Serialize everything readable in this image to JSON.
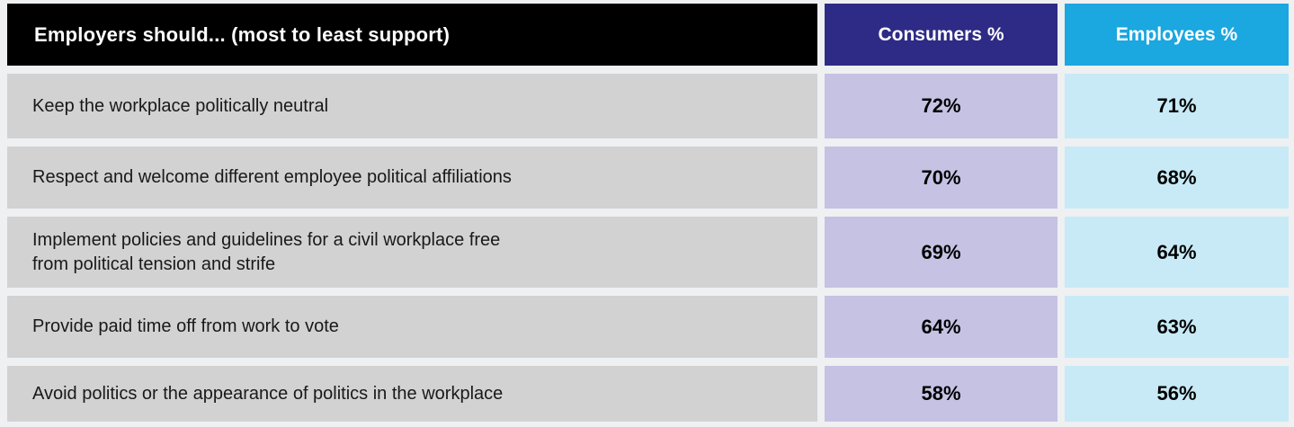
{
  "table": {
    "header": {
      "label": "Employers should... (most to least support)",
      "consumers": "Consumers %",
      "employees": "Employees %"
    },
    "rows": [
      {
        "label": "Keep the workplace politically neutral",
        "consumers": "72%",
        "employees": "71%"
      },
      {
        "label": "Respect and welcome different employee political affiliations",
        "consumers": "70%",
        "employees": "68%"
      },
      {
        "label": "Implement policies and guidelines for a civil workplace free\nfrom political tension and strife",
        "consumers": "69%",
        "employees": "64%"
      },
      {
        "label": "Provide paid time off from work to vote",
        "consumers": "64%",
        "employees": "63%"
      },
      {
        "label": "Avoid politics or the appearance of politics in the workplace",
        "consumers": "58%",
        "employees": "56%"
      }
    ]
  },
  "colors": {
    "background": "#eef0f2",
    "header_label_bg": "#000000",
    "header_consumers_bg": "#2e2b86",
    "header_employees_bg": "#1ba7e0",
    "row_label_bg": "#d2d2d3",
    "value_consumers_bg": "#c6c2e3",
    "value_employees_bg": "#c7eaf6",
    "header_text": "#ffffff",
    "body_text": "#191919"
  },
  "chart_data": {
    "type": "table",
    "title": "Employers should... (most to least support)",
    "columns": [
      "Employers should... (most to least support)",
      "Consumers %",
      "Employees %"
    ],
    "categories": [
      "Keep the workplace politically neutral",
      "Respect and welcome different employee political affiliations",
      "Implement policies and guidelines for a civil workplace free from political tension and strife",
      "Provide paid time off from work to vote",
      "Avoid politics or the appearance of politics in the workplace"
    ],
    "series": [
      {
        "name": "Consumers %",
        "values": [
          72,
          70,
          69,
          64,
          58
        ]
      },
      {
        "name": "Employees %",
        "values": [
          71,
          68,
          64,
          63,
          56
        ]
      }
    ],
    "sort_order": "most to least support",
    "value_unit": "%"
  }
}
